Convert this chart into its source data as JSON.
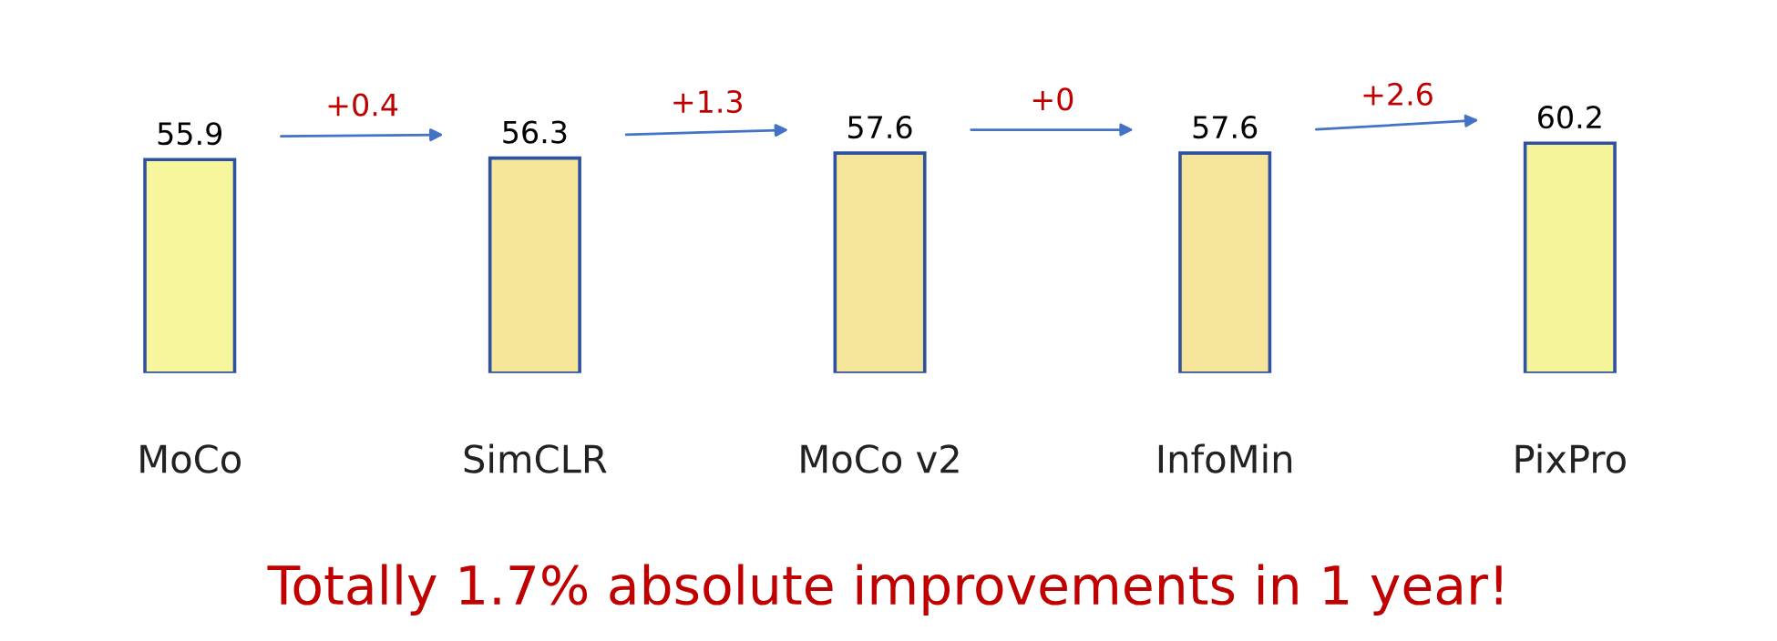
{
  "chart_data": {
    "type": "bar",
    "categories": [
      "MoCo",
      "SimCLR",
      "MoCo v2",
      "InfoMin",
      "PixPro"
    ],
    "values": [
      55.9,
      56.3,
      57.6,
      57.6,
      60.2
    ],
    "colors": [
      "#f8f69c",
      "#f5e69a",
      "#f5e59a",
      "#f5e59a",
      "#f6f49a"
    ],
    "tick_labels": "x",
    "data_labels": true,
    "grid": false,
    "annotations": [
      "+0.4",
      "+1.3",
      "+0",
      "+2.6",
      "Totally 1.7% absolute improvements in 1 year!"
    ]
  }
}
